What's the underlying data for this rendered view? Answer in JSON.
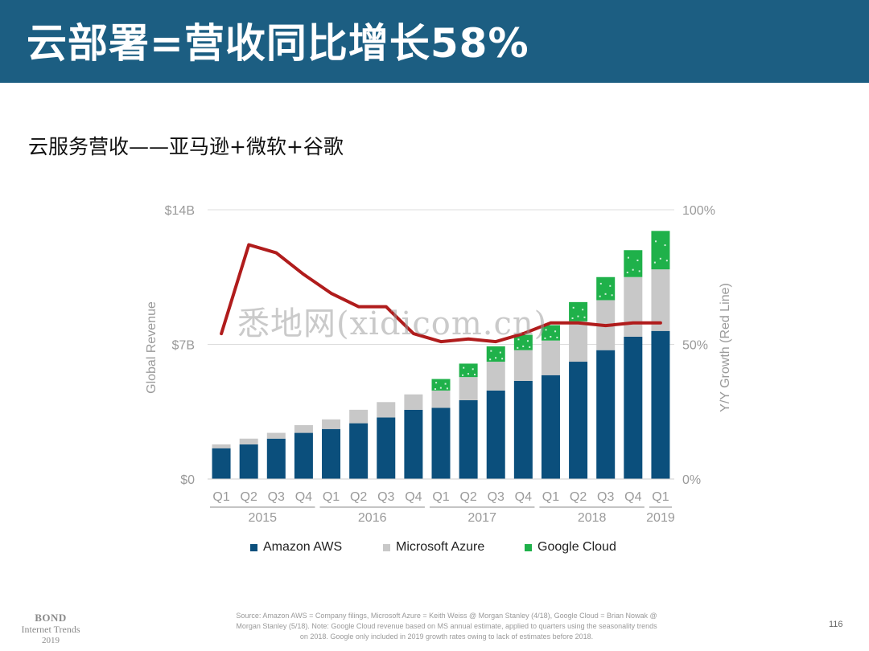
{
  "header": {
    "title": "云部署=营收同比增长58%"
  },
  "subtitle": "云服务营收——亚马逊+微软+谷歌",
  "watermark": "悉地网(xidicom.cn)",
  "colors": {
    "title_bg": "#1c5e82",
    "aws": "#0b4f7c",
    "azure": "#c8c8c8",
    "google": "#1fb14a",
    "growth_line": "#b01c1c"
  },
  "chart_data": {
    "type": "bar",
    "stacked": true,
    "categories": [
      "Q1",
      "Q2",
      "Q3",
      "Q4",
      "Q1",
      "Q2",
      "Q3",
      "Q4",
      "Q1",
      "Q2",
      "Q3",
      "Q4",
      "Q1",
      "Q2",
      "Q3",
      "Q4",
      "Q1"
    ],
    "year_groups": [
      {
        "label": "2015",
        "start": 0,
        "end": 3
      },
      {
        "label": "2016",
        "start": 4,
        "end": 7
      },
      {
        "label": "2017",
        "start": 8,
        "end": 11
      },
      {
        "label": "2018",
        "start": 12,
        "end": 15
      },
      {
        "label": "2019",
        "start": 16,
        "end": 16
      }
    ],
    "series": [
      {
        "name": "Amazon AWS",
        "color": "#0b4f7c",
        "values": [
          1.6,
          1.8,
          2.1,
          2.4,
          2.6,
          2.9,
          3.2,
          3.6,
          3.7,
          4.1,
          4.6,
          5.1,
          5.4,
          6.1,
          6.7,
          7.4,
          7.7
        ]
      },
      {
        "name": "Microsoft Azure",
        "color": "#c8c8c8",
        "values": [
          0.2,
          0.3,
          0.3,
          0.4,
          0.5,
          0.7,
          0.8,
          0.8,
          0.9,
          1.2,
          1.5,
          1.6,
          1.8,
          2.1,
          2.6,
          3.1,
          3.2
        ]
      },
      {
        "name": "Google Cloud",
        "color": "#1fb14a",
        "values": [
          0,
          0,
          0,
          0,
          0,
          0,
          0,
          0,
          0.6,
          0.7,
          0.8,
          0.8,
          0.8,
          1.0,
          1.2,
          1.4,
          2.0
        ]
      }
    ],
    "line_series": {
      "label": "Y/Y Growth (Red Line)",
      "color": "#b01c1c",
      "values": [
        54,
        87,
        84,
        76,
        69,
        64,
        64,
        54,
        51,
        52,
        51,
        54,
        58,
        58,
        57,
        58,
        58
      ]
    },
    "ylabel": "Global Revenue",
    "y2label": "Y/Y Growth (Red Line)",
    "ylim": [
      0,
      14
    ],
    "yticks": [
      "$0",
      "$7B",
      "$14B"
    ],
    "y2lim": [
      0,
      100
    ],
    "y2ticks": [
      "0%",
      "50%",
      "100%"
    ],
    "grid": true,
    "legend": "bottom"
  },
  "footer": {
    "source_line1": "Source: Amazon AWS = Company filings, Microsoft Azure = Keith Weiss @ Morgan Stanley (4/18), Google Cloud = Brian Nowak @",
    "source_line2": "Morgan Stanley (5/18).  Note: Google Cloud revenue based on MS annual estimate, applied to quarters using the seasonality trends",
    "source_line3": "on 2018.  Google only included in 2019 growth rates owing to lack of estimates before 2018.",
    "bond_line1": "BOND",
    "bond_line2": "Internet Trends",
    "bond_line3": "2019",
    "page_number": "116"
  }
}
